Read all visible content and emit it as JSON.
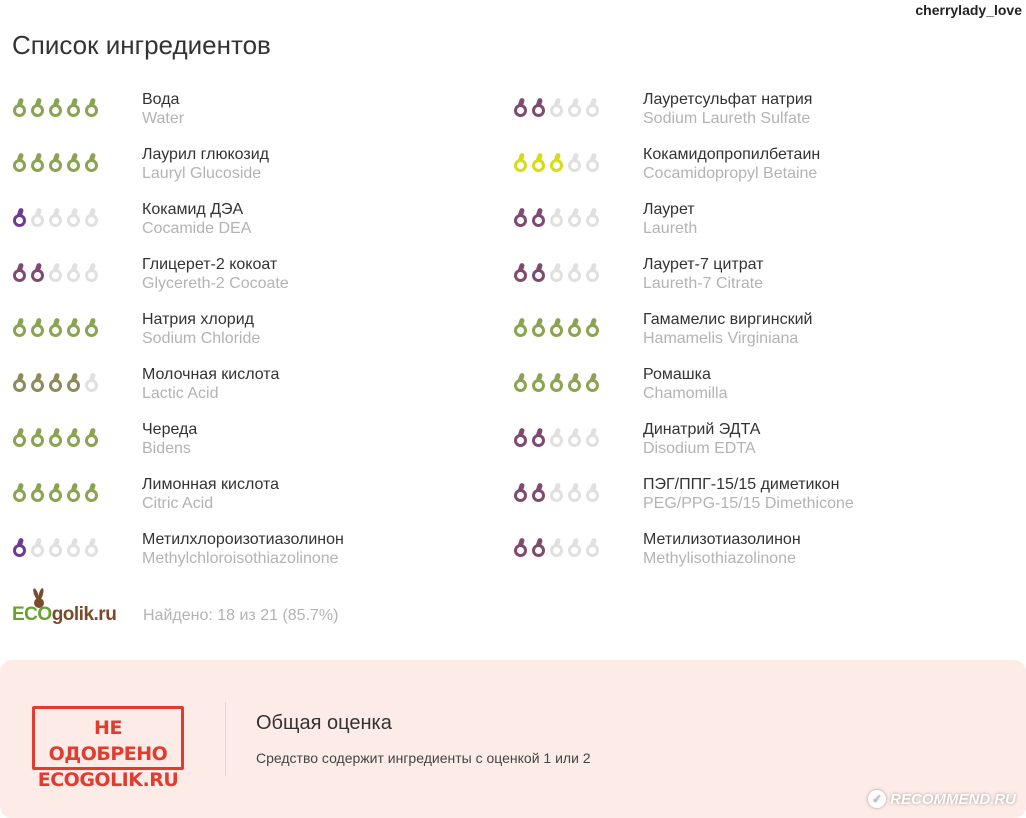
{
  "username": "cherrylady_love",
  "title": "Список ингредиентов",
  "colors": {
    "green": "#8aa451",
    "olive": "#8e8b58",
    "yellow": "#d6dc18",
    "plum": "#7f4a6f",
    "purple": "#6c3a93",
    "empty": "#e0e0e0",
    "stamp_red": "#e23b2f",
    "summary_bg": "#fdebe7"
  },
  "ingredients_left": [
    {
      "ru": "Вода",
      "en": "Water",
      "rating": 5,
      "color": "green"
    },
    {
      "ru": "Лаурил глюкозид",
      "en": "Lauryl Glucoside",
      "rating": 5,
      "color": "green"
    },
    {
      "ru": "Кокамид ДЭА",
      "en": "Cocamide DEA",
      "rating": 1,
      "color": "purple"
    },
    {
      "ru": "Глицерет-2 кокоат",
      "en": "Glycereth-2 Cocoate",
      "rating": 2,
      "color": "plum"
    },
    {
      "ru": "Натрия хлорид",
      "en": "Sodium Chloride",
      "rating": 5,
      "color": "green"
    },
    {
      "ru": "Молочная кислота",
      "en": "Lactic Acid",
      "rating": 4,
      "color": "olive"
    },
    {
      "ru": "Череда",
      "en": "Bidens",
      "rating": 5,
      "color": "green"
    },
    {
      "ru": "Лимонная кислота",
      "en": "Citric Acid",
      "rating": 5,
      "color": "green"
    },
    {
      "ru": "Метилхлороизотиазолинон",
      "en": "Methylchloroisothiazolinone",
      "rating": 1,
      "color": "purple"
    }
  ],
  "ingredients_right": [
    {
      "ru": "Лауретсульфат натрия",
      "en": "Sodium Laureth Sulfate",
      "rating": 2,
      "color": "plum"
    },
    {
      "ru": "Кокамидопропилбетаин",
      "en": "Cocamidopropyl Betaine",
      "rating": 3,
      "color": "yellow"
    },
    {
      "ru": "Лаурет",
      "en": "Laureth",
      "rating": 2,
      "color": "plum"
    },
    {
      "ru": "Лаурет-7 цитрат",
      "en": "Laureth-7 Citrate",
      "rating": 2,
      "color": "plum"
    },
    {
      "ru": "Гамамелис виргинский",
      "en": "Hamamelis Virginiana",
      "rating": 5,
      "color": "green"
    },
    {
      "ru": "Ромашка",
      "en": "Chamomilla",
      "rating": 5,
      "color": "green"
    },
    {
      "ru": "Динатрий ЭДТА",
      "en": "Disodium EDTA",
      "rating": 2,
      "color": "plum"
    },
    {
      "ru": "ПЭГ/ППГ-15/15 диметикон",
      "en": "PEG/PPG-15/15 Dimethicone",
      "rating": 2,
      "color": "plum"
    },
    {
      "ru": "Метилизотиазолинон",
      "en": "Methylisothiazolinone",
      "rating": 2,
      "color": "plum"
    }
  ],
  "logo": {
    "eco": "ECO",
    "golik": "golik.ru"
  },
  "found_text": "Найдено: 18 из 21 (85.7%)",
  "summary": {
    "stamp_line1": "НЕ ОДОБРЕНО",
    "stamp_line2": "ECOGOLIK.RU",
    "title": "Общая оценка",
    "text": "Средство содержит ингредиенты с оценкой 1 или 2"
  },
  "watermark": "RECOMMEND.RU"
}
